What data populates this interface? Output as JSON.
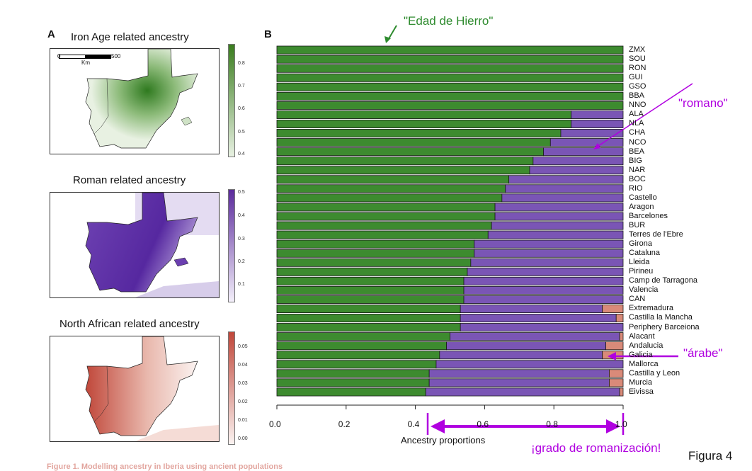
{
  "panel_a_label": "A",
  "panel_b_label": "B",
  "maps": [
    {
      "title": "Iron Age related ancestry",
      "colorbar_ticks": [
        "0.8",
        "0.7",
        "0.6",
        "0.5",
        "0.4"
      ],
      "color": "#3a7d1e"
    },
    {
      "title": "Roman related ancestry",
      "colorbar_ticks": [
        "0.5",
        "0.4",
        "0.3",
        "0.2",
        "0.1"
      ],
      "color": "#5b2a9c"
    },
    {
      "title": "North African related ancestry",
      "colorbar_ticks": [
        "0.05",
        "0.04",
        "0.03",
        "0.02",
        "0.01",
        "0.00"
      ],
      "color": "#c0473a"
    }
  ],
  "scale_bar": {
    "start": "0",
    "end": "500",
    "unit": "Km"
  },
  "annotations": {
    "iron_age": "\"Edad de Hierro\"",
    "romano": "\"romano\"",
    "arabe": "\"árabe\"",
    "romanizacion": "¡grado de romanización!",
    "figure": "Figura 4"
  },
  "colors": {
    "iron_age": "#3d8b2f",
    "roman": "#7a55b5",
    "north_african": "#d98a79",
    "annotation": "#b000e0",
    "iron_annotation": "#2e8b2e"
  },
  "caption_fragment": "Figure 1. Modelling ancestry in Iberia using ancient populations",
  "chart_data": {
    "type": "bar",
    "orientation": "horizontal",
    "stacked": true,
    "xlabel": "Ancestry proportions",
    "xlim": [
      0,
      1
    ],
    "xticks": [
      "0.0",
      "0.2",
      "0.4",
      "0.6",
      "0.8",
      "1.0"
    ],
    "categories": [
      "ZMX",
      "SOU",
      "RON",
      "GUI",
      "GSO",
      "BBA",
      "NNO",
      "ALA",
      "NLA",
      "CHA",
      "NCO",
      "BEA",
      "BIG",
      "NAR",
      "BOC",
      "RIO",
      "Castello",
      "Aragon",
      "Barcelones",
      "BUR",
      "Terres de l'Ebre",
      "Girona",
      "Cataluna",
      "Lleida",
      "Pirineu",
      "Camp de Tarragona",
      "Valencia",
      "CAN",
      "Extremadura",
      "Castilla la Mancha",
      "Periphery Barceiona",
      "Alacant",
      "Andalucia",
      "Galicia",
      "Mallorca",
      "Castilla y Leon",
      "Murcia",
      "Eivissa"
    ],
    "series": [
      {
        "name": "Iron Age",
        "values": [
          1.0,
          1.0,
          1.0,
          1.0,
          1.0,
          1.0,
          1.0,
          0.85,
          0.85,
          0.82,
          0.79,
          0.77,
          0.74,
          0.73,
          0.67,
          0.66,
          0.65,
          0.63,
          0.63,
          0.62,
          0.61,
          0.57,
          0.57,
          0.56,
          0.55,
          0.54,
          0.54,
          0.54,
          0.53,
          0.53,
          0.53,
          0.5,
          0.49,
          0.47,
          0.46,
          0.44,
          0.44,
          0.43
        ]
      },
      {
        "name": "Roman",
        "values": [
          0,
          0,
          0,
          0,
          0,
          0,
          0,
          0.15,
          0.15,
          0.18,
          0.21,
          0.23,
          0.26,
          0.27,
          0.33,
          0.34,
          0.35,
          0.37,
          0.37,
          0.38,
          0.39,
          0.43,
          0.43,
          0.44,
          0.45,
          0.46,
          0.46,
          0.46,
          0.41,
          0.45,
          0.47,
          0.49,
          0.46,
          0.47,
          0.54,
          0.52,
          0.52,
          0.56
        ]
      },
      {
        "name": "North African",
        "values": [
          0,
          0,
          0,
          0,
          0,
          0,
          0,
          0,
          0,
          0,
          0,
          0,
          0,
          0,
          0,
          0,
          0,
          0,
          0,
          0,
          0,
          0,
          0,
          0,
          0,
          0,
          0,
          0,
          0.06,
          0.02,
          0,
          0.01,
          0.05,
          0.06,
          0,
          0.04,
          0.04,
          0.01
        ]
      }
    ]
  }
}
